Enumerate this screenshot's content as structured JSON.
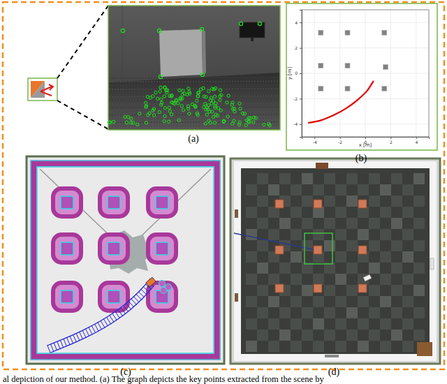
{
  "figure": {
    "panel_labels": [
      "(a)",
      "(b)",
      "(c)",
      "(d)"
    ],
    "caption": "al depiction of our method. (a) The graph depicts the key points extracted from the scene by"
  },
  "chart_data": {
    "type": "scatter",
    "x_label": "x [m]",
    "y_label": "y [m]",
    "xlim": [
      -5,
      5
    ],
    "ylim": [
      -5,
      5
    ],
    "xticks": [
      -4,
      -2,
      0,
      2,
      4
    ],
    "yticks": [
      -4,
      -2,
      0,
      2,
      4
    ],
    "grid": true,
    "series": [
      {
        "type": "scatter",
        "marker": "square",
        "color": "#808080",
        "x": [
          -3.5,
          -1.4,
          1.5,
          -3.5,
          -1.4,
          1.6,
          -3.5,
          -1.4,
          1.5
        ],
        "values": [
          3.2,
          3.2,
          3.2,
          0.6,
          0.6,
          0.5,
          -1.2,
          -1.2,
          -1.2
        ]
      },
      {
        "type": "line",
        "line_style": "solid",
        "color": "#e00000",
        "x": [
          -4.5,
          -3.5,
          -2.5,
          -1.5,
          -0.5,
          0.2,
          0.65
        ],
        "values": [
          -3.9,
          -3.7,
          -3.3,
          -2.75,
          -2.0,
          -1.3,
          -0.6
        ]
      }
    ]
  }
}
